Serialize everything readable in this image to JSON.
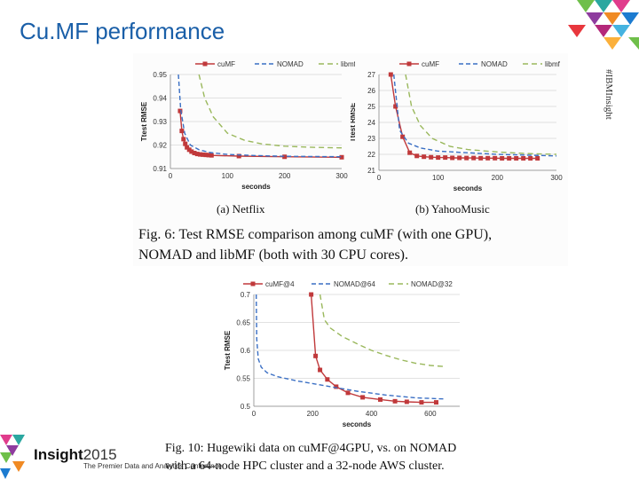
{
  "slide": {
    "title": "Cu.MF performance",
    "side_code": "#IBMInsight",
    "brand": "Insight",
    "brand_year": "2015",
    "brand_tagline": "The Premier Data and Analytics Conference",
    "colors": {
      "title": "#1a5fa8",
      "cumf": "#c0393b",
      "nomad": "#3a6fc4",
      "libmf": "#9ab85c"
    }
  },
  "captions": {
    "sub_a": "(a)  Netflix",
    "sub_b": "(b)  YahooMusic",
    "fig6_line1": "Fig. 6:  Test RMSE comparison among cuMF (with one GPU),",
    "fig6_line2": "NOMAD and libMF (both with 30 CPU cores).",
    "fig10_line1": "Fig.  10:  Hugewiki  data  on  cuMF@4GPU,  vs.  on  NOMAD",
    "fig10_line2": "with a 64-node HPC cluster and a 32-node AWS cluster."
  },
  "chart_data": [
    {
      "type": "line",
      "id": "netflix",
      "title": "(a) Netflix",
      "xlabel": "seconds",
      "ylabel": "Ttest RMSE",
      "xlim": [
        0,
        300
      ],
      "ylim": [
        0.91,
        0.95
      ],
      "xticks": [
        0,
        100,
        200,
        300
      ],
      "yticks": [
        0.91,
        0.92,
        0.93,
        0.94,
        0.95
      ],
      "ytick_labels": [
        "0.91",
        "0.92",
        "0.93",
        "0.94",
        "0.95"
      ],
      "legend": [
        "cuMF",
        "NOMAD",
        "libmf"
      ],
      "series": [
        {
          "name": "cuMF",
          "color": "#c0393b",
          "dash": "",
          "markers": true,
          "x": [
            17,
            20,
            23,
            26,
            29,
            33,
            37,
            42,
            47,
            52,
            57,
            62,
            67,
            72,
            120,
            200,
            300
          ],
          "y": [
            0.9345,
            0.926,
            0.9225,
            0.9205,
            0.919,
            0.918,
            0.9172,
            0.9166,
            0.9162,
            0.916,
            0.9159,
            0.9158,
            0.9157,
            0.9156,
            0.9153,
            0.915,
            0.9148
          ]
        },
        {
          "name": "NOMAD",
          "color": "#3a6fc4",
          "dash": "5,3",
          "markers": false,
          "x": [
            14,
            18,
            25,
            35,
            50,
            70,
            100,
            150,
            200,
            300
          ],
          "y": [
            0.95,
            0.935,
            0.925,
            0.92,
            0.918,
            0.9168,
            0.916,
            0.9155,
            0.9152,
            0.915
          ]
        },
        {
          "name": "libmf",
          "color": "#9ab85c",
          "dash": "6,4",
          "markers": false,
          "x": [
            50,
            60,
            75,
            100,
            130,
            160,
            200,
            250,
            300
          ],
          "y": [
            0.95,
            0.94,
            0.932,
            0.925,
            0.922,
            0.9205,
            0.9195,
            0.919,
            0.9188
          ]
        }
      ]
    },
    {
      "type": "line",
      "id": "yahoomusic",
      "title": "(b) YahooMusic",
      "xlabel": "seconds",
      "ylabel": "Ttest RMSE",
      "xlim": [
        0,
        300
      ],
      "ylim": [
        21,
        27
      ],
      "xticks": [
        0,
        100,
        200,
        300
      ],
      "yticks": [
        21,
        22,
        23,
        24,
        25,
        26,
        27
      ],
      "ytick_labels": [
        "21",
        "22",
        "23",
        "24",
        "25",
        "26",
        "27"
      ],
      "legend": [
        "cuMF",
        "NOMAD",
        "libmf"
      ],
      "series": [
        {
          "name": "cuMF",
          "color": "#c0393b",
          "dash": "",
          "markers": true,
          "x": [
            20,
            28,
            40,
            52,
            64,
            76,
            88,
            100,
            112,
            124,
            136,
            148,
            160,
            172,
            184,
            196,
            208,
            220,
            232,
            244,
            256,
            268
          ],
          "y": [
            27,
            25,
            23.1,
            22.1,
            21.9,
            21.85,
            21.82,
            21.8,
            21.8,
            21.78,
            21.78,
            21.77,
            21.77,
            21.76,
            21.76,
            21.76,
            21.75,
            21.75,
            21.75,
            21.75,
            21.75,
            21.75
          ]
        },
        {
          "name": "NOMAD",
          "color": "#3a6fc4",
          "dash": "5,3",
          "markers": false,
          "x": [
            25,
            35,
            50,
            70,
            100,
            150,
            200,
            250,
            300
          ],
          "y": [
            27,
            23.5,
            22.7,
            22.4,
            22.2,
            22.1,
            22.0,
            21.95,
            21.9
          ]
        },
        {
          "name": "libmf",
          "color": "#9ab85c",
          "dash": "6,4",
          "markers": false,
          "x": [
            45,
            55,
            70,
            90,
            120,
            150,
            200,
            250,
            300
          ],
          "y": [
            27,
            25,
            23.8,
            23.0,
            22.5,
            22.3,
            22.15,
            22.05,
            22.0
          ]
        }
      ]
    },
    {
      "type": "line",
      "id": "hugewiki",
      "title": "Fig. 10: Hugewiki",
      "xlabel": "seconds",
      "ylabel": "Ttest RMSE",
      "xlim": [
        0,
        700
      ],
      "ylim": [
        0.5,
        0.7
      ],
      "xticks": [
        0,
        200,
        400,
        600
      ],
      "yticks": [
        0.5,
        0.55,
        0.6,
        0.65,
        0.7
      ],
      "ytick_labels": [
        "0.5",
        "0.55",
        "0.6",
        "0.65",
        "0.7"
      ],
      "legend": [
        "cuMF@4",
        "NOMAD@64",
        "NOMAD@32"
      ],
      "series": [
        {
          "name": "cuMF@4",
          "color": "#c0393b",
          "dash": "",
          "markers": true,
          "x": [
            195,
            210,
            225,
            250,
            280,
            320,
            370,
            430,
            480,
            520,
            570,
            620
          ],
          "y": [
            0.7,
            0.59,
            0.565,
            0.548,
            0.535,
            0.524,
            0.516,
            0.512,
            0.509,
            0.508,
            0.507,
            0.507
          ]
        },
        {
          "name": "NOMAD@64",
          "color": "#3a6fc4",
          "dash": "5,3",
          "markers": false,
          "x": [
            8,
            10,
            15,
            25,
            45,
            80,
            150,
            250,
            350,
            450,
            550,
            650
          ],
          "y": [
            0.7,
            0.62,
            0.585,
            0.57,
            0.56,
            0.553,
            0.545,
            0.536,
            0.527,
            0.52,
            0.515,
            0.513
          ]
        },
        {
          "name": "NOMAD@32",
          "color": "#9ab85c",
          "dash": "6,4",
          "markers": false,
          "x": [
            225,
            240,
            260,
            300,
            350,
            400,
            450,
            500,
            550,
            600,
            650
          ],
          "y": [
            0.7,
            0.655,
            0.64,
            0.625,
            0.612,
            0.6,
            0.591,
            0.583,
            0.577,
            0.573,
            0.571
          ]
        }
      ]
    }
  ]
}
